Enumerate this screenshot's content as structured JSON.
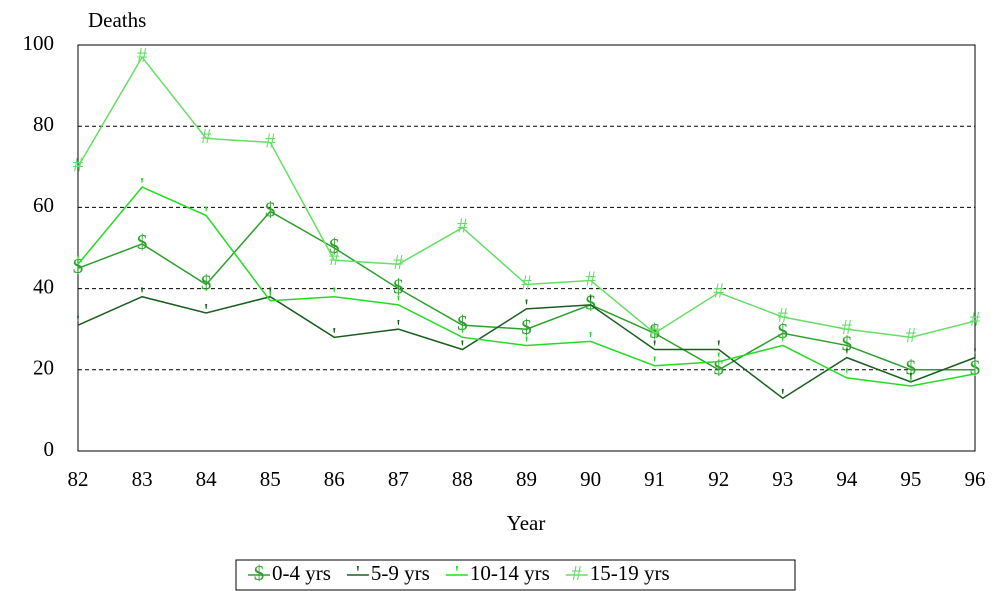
{
  "chart_data": {
    "type": "line",
    "y_label": "Deaths",
    "x_label": "Year",
    "x": [
      82,
      83,
      84,
      85,
      86,
      87,
      88,
      89,
      90,
      91,
      92,
      93,
      94,
      95,
      96
    ],
    "xlim": [
      82,
      96
    ],
    "xticks": [
      82,
      83,
      84,
      85,
      86,
      87,
      88,
      89,
      90,
      91,
      92,
      93,
      94,
      95,
      96
    ],
    "ylim": [
      0,
      100
    ],
    "yticks": [
      0,
      20,
      40,
      60,
      80,
      100
    ],
    "grid": true,
    "legend": "bottom",
    "series": [
      {
        "name": "0-4 yrs",
        "marker": "$",
        "color": "#2ca02c",
        "values": [
          45,
          51,
          41,
          59,
          50,
          40,
          31,
          30,
          36,
          29,
          20,
          29,
          26,
          20,
          20
        ]
      },
      {
        "name": "5-9 yrs",
        "marker": "'",
        "color": "#1b5e20",
        "values": [
          31,
          38,
          34,
          38,
          28,
          30,
          25,
          35,
          36,
          25,
          25,
          13,
          23,
          17,
          23
        ]
      },
      {
        "name": "10-14 yrs",
        "marker": "'",
        "color": "#22dd22",
        "values": [
          46,
          65,
          58,
          37,
          38,
          36,
          28,
          26,
          27,
          21,
          22,
          26,
          18,
          16,
          19
        ]
      },
      {
        "name": "15-19 yrs",
        "marker": "#",
        "color": "#66dd66",
        "values": [
          70,
          97,
          77,
          76,
          47,
          46,
          55,
          41,
          42,
          29,
          39,
          33,
          30,
          28,
          32
        ]
      }
    ]
  }
}
